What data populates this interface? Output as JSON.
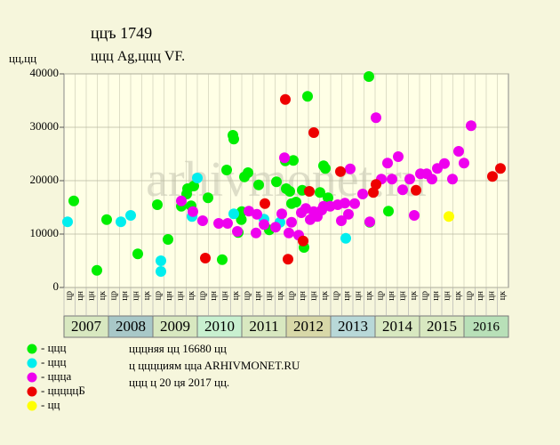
{
  "chart_data": {
    "type": "scatter",
    "title": "ццъ 1749",
    "subtitle": "ццц Ag,ццц VF.",
    "y_label": "цц,цц",
    "watermark": "arhivmonet.ru",
    "xlim": [
      2007,
      2017
    ],
    "ylim": [
      0,
      40000
    ],
    "yticks": [
      0,
      10000,
      20000,
      30000,
      40000
    ],
    "years": [
      "2007",
      "2008",
      "2009",
      "2010",
      "2011",
      "2012",
      "2013",
      "2014",
      "2015",
      "2016"
    ],
    "year_colors": [
      "#d8e8c0",
      "#a8c8c8",
      "#d8e8c0",
      "#c8f0d0",
      "#d8e8c0",
      "#d8d8a8",
      "#b8d8d8",
      "#d8e8c0",
      "#d8e8c0",
      "#b8e0b8"
    ],
    "sub_labels": [
      "цр",
      "цн",
      "цн",
      "цк"
    ],
    "grid": true,
    "notes": [
      "цццняя цц 16680 цц",
      "ц цццциям ццa ARHIVMONET.RU",
      "ццц ц 20 ця 2017 цц."
    ],
    "series": [
      {
        "name": "- ццц",
        "color": "#00ee00",
        "x": [
          2007.22,
          2007.74,
          2007.96,
          2008.66,
          2009.1,
          2009.34,
          2009.64,
          2009.76,
          2009.78,
          2009.86,
          2009.92,
          2010.24,
          2010.56,
          2010.66,
          2010.8,
          2010.82,
          2010.92,
          2010.99,
          2011.0,
          2011.06,
          2011.14,
          2011.38,
          2011.62,
          2011.78,
          2011.98,
          2012.0,
          2012.08,
          2012.12,
          2012.16,
          2012.22,
          2012.36,
          2012.4,
          2012.48,
          2012.76,
          2012.84,
          2012.88,
          2012.94,
          2013.86,
          2013.88,
          2014.3
        ],
        "values": [
          16200,
          3200,
          12700,
          6300,
          15500,
          9000,
          15200,
          17500,
          18500,
          15300,
          19000,
          16800,
          5200,
          22000,
          28500,
          27800,
          10300,
          12700,
          14200,
          20700,
          21500,
          19200,
          10800,
          19800,
          23700,
          18500,
          18000,
          15700,
          23800,
          16000,
          18200,
          7500,
          35800,
          17800,
          22800,
          22300,
          16800,
          39500,
          12200,
          14300
        ]
      },
      {
        "name": "- ццц",
        "color": "#00eeee",
        "x": [
          2007.08,
          2008.28,
          2008.5,
          2009.18,
          2009.18,
          2009.88,
          2010.0,
          2010.82,
          2011.5,
          2011.86,
          2013.34
        ],
        "values": [
          12300,
          12300,
          13500,
          5000,
          3000,
          13300,
          20500,
          13800,
          12800,
          12200,
          9200
        ]
      },
      {
        "name": "- ццца",
        "color": "#ee00ee",
        "x": [
          2009.64,
          2009.9,
          2010.12,
          2010.48,
          2010.68,
          2010.9,
          2011.16,
          2011.32,
          2011.34,
          2011.5,
          2011.76,
          2011.9,
          2011.96,
          2012.06,
          2012.12,
          2012.28,
          2012.34,
          2012.44,
          2012.54,
          2012.62,
          2012.7,
          2012.8,
          2012.84,
          2012.99,
          2013.16,
          2013.24,
          2013.32,
          2013.4,
          2013.44,
          2013.54,
          2013.72,
          2013.88,
          2014.02,
          2014.14,
          2014.28,
          2014.38,
          2014.52,
          2014.62,
          2014.78,
          2014.88,
          2015.02,
          2015.16,
          2015.28,
          2015.4,
          2015.56,
          2015.74,
          2015.88,
          2016.0,
          2016.16
        ],
        "values": [
          16200,
          14200,
          12500,
          12000,
          12000,
          10500,
          14300,
          10200,
          13700,
          11800,
          11300,
          13800,
          24300,
          10200,
          12200,
          9800,
          14000,
          14800,
          12700,
          14200,
          13300,
          14500,
          15200,
          15200,
          15500,
          12500,
          15800,
          13700,
          22200,
          15700,
          17500,
          12300,
          31800,
          20300,
          23300,
          20300,
          24500,
          18300,
          20300,
          13500,
          21300,
          21300,
          20300,
          22300,
          23200,
          20300,
          25500,
          23300,
          30300
        ]
      },
      {
        "name": "- цццццБ",
        "color": "#ee0000",
        "x": [
          2010.18,
          2011.52,
          2011.98,
          2012.04,
          2012.38,
          2012.52,
          2012.62,
          2013.22,
          2013.96,
          2014.02,
          2014.92,
          2016.64,
          2016.82
        ],
        "values": [
          5500,
          15700,
          35200,
          5300,
          8700,
          18000,
          29000,
          21700,
          17800,
          19300,
          18200,
          20800,
          22300
        ]
      },
      {
        "name": "- цц",
        "color": "#ffff00",
        "x": [
          2015.66
        ],
        "values": [
          13300
        ]
      }
    ]
  }
}
